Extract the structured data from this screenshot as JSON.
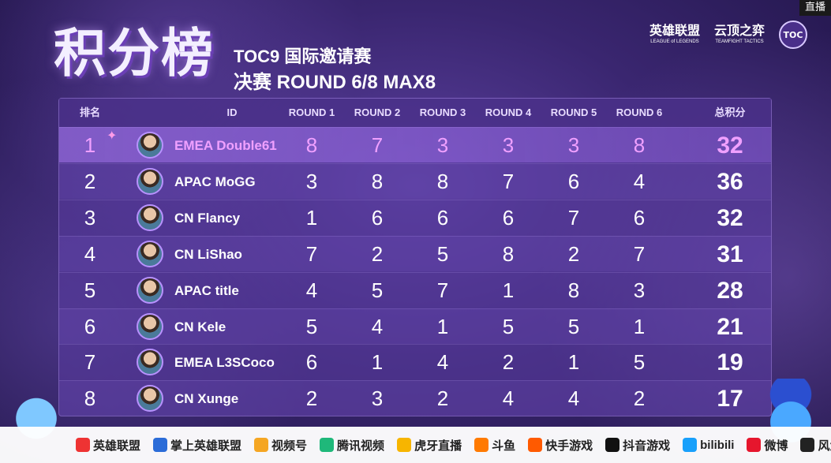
{
  "live_badge": "直播",
  "title": "积分榜",
  "subtitle_line1": "TOC9 国际邀请赛",
  "subtitle_line2": "决赛 ROUND 6/8 MAX8",
  "logos": [
    {
      "main": "英雄联盟",
      "small": "LEAGUE of LEGENDS"
    },
    {
      "main": "云顶之弈",
      "small": "TEAMFIGHT TACTICS"
    },
    {
      "main": "TOC",
      "small": ""
    }
  ],
  "columns": {
    "rank": "排名",
    "id": "ID",
    "r1": "ROUND 1",
    "r2": "ROUND 2",
    "r3": "ROUND 3",
    "r4": "ROUND 4",
    "r5": "ROUND 5",
    "r6": "ROUND 6",
    "total": "总积分"
  },
  "rows": [
    {
      "rank": "1",
      "name": "EMEA Double61",
      "r1": "8",
      "r2": "7",
      "r3": "3",
      "r4": "3",
      "r5": "3",
      "r6": "8",
      "total": "32"
    },
    {
      "rank": "2",
      "name": "APAC MoGG",
      "r1": "3",
      "r2": "8",
      "r3": "8",
      "r4": "7",
      "r5": "6",
      "r6": "4",
      "total": "36"
    },
    {
      "rank": "3",
      "name": "CN Flancy",
      "r1": "1",
      "r2": "6",
      "r3": "6",
      "r4": "6",
      "r5": "7",
      "r6": "6",
      "total": "32"
    },
    {
      "rank": "4",
      "name": "CN LiShao",
      "r1": "7",
      "r2": "2",
      "r3": "5",
      "r4": "8",
      "r5": "2",
      "r6": "7",
      "total": "31"
    },
    {
      "rank": "5",
      "name": "APAC title",
      "r1": "4",
      "r2": "5",
      "r3": "7",
      "r4": "1",
      "r5": "8",
      "r6": "3",
      "total": "28"
    },
    {
      "rank": "6",
      "name": "CN Kele",
      "r1": "5",
      "r2": "4",
      "r3": "1",
      "r4": "5",
      "r5": "5",
      "r6": "1",
      "total": "21"
    },
    {
      "rank": "7",
      "name": "EMEA L3SCoco",
      "r1": "6",
      "r2": "1",
      "r3": "4",
      "r4": "2",
      "r5": "1",
      "r6": "5",
      "total": "19"
    },
    {
      "rank": "8",
      "name": "CN Xunge",
      "r1": "2",
      "r2": "3",
      "r3": "2",
      "r4": "4",
      "r5": "4",
      "r6": "2",
      "total": "17"
    }
  ],
  "footer": [
    "英雄联盟",
    "掌上英雄联盟",
    "视频号",
    "腾讯视频",
    "虎牙直播",
    "斗鱼",
    "快手游戏",
    "抖音游戏",
    "bilibili",
    "微博",
    "风鱼电竞"
  ],
  "colors": {
    "highlight": "#f0a0ff",
    "board": "#5a3c9e"
  }
}
